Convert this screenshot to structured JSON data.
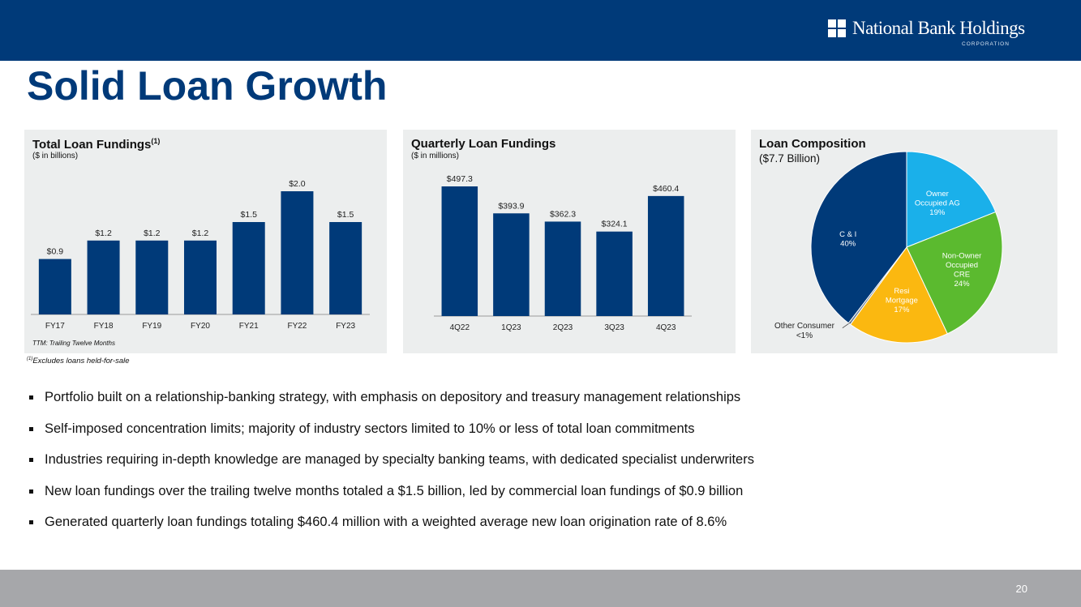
{
  "header": {
    "logo_name": "National Bank Holdings",
    "logo_sub": "CORPORATION",
    "logo_icon": "four-squares-icon"
  },
  "page": {
    "title": "Solid Loan Growth",
    "number": "20"
  },
  "colors": {
    "navy": "#003a79",
    "light_blue": "#1ab0ea",
    "green": "#5bba2f",
    "gold": "#fbb810",
    "panel_bg": "#eceeee"
  },
  "chart_data": [
    {
      "type": "bar",
      "title": "Total Loan Fundings",
      "title_sup": "(1)",
      "subtitle": "($ in billions)",
      "categories": [
        "FY17",
        "FY18",
        "FY19",
        "FY20",
        "FY21",
        "FY22",
        "FY23"
      ],
      "values": [
        0.9,
        1.2,
        1.2,
        1.2,
        1.5,
        2.0,
        1.5
      ],
      "labels": [
        "$0.9",
        "$1.2",
        "$1.2",
        "$1.2",
        "$1.5",
        "$2.0",
        "$1.5"
      ],
      "ylim": [
        0,
        2.0
      ],
      "note": "TTM: Trailing Twelve Months"
    },
    {
      "type": "bar",
      "title": "Quarterly Loan Fundings",
      "subtitle": "($ in millions)",
      "categories": [
        "4Q22",
        "1Q23",
        "2Q23",
        "3Q23",
        "4Q23"
      ],
      "values": [
        497.3,
        393.9,
        362.3,
        324.1,
        460.4
      ],
      "labels": [
        "$497.3",
        "$393.9",
        "$362.3",
        "$324.1",
        "$460.4"
      ],
      "ylim": [
        0,
        497.3
      ]
    },
    {
      "type": "pie",
      "title": "Loan Composition",
      "subtitle": "($7.7 Billion)",
      "slices": [
        {
          "name": "Owner Occupied AG",
          "lines": [
            "Owner",
            "Occupied AG"
          ],
          "pct_label": "19%",
          "value": 19,
          "color": "#1ab0ea"
        },
        {
          "name": "Non-Owner Occupied CRE",
          "lines": [
            "Non-Owner",
            "Occupied",
            "CRE"
          ],
          "pct_label": "24%",
          "value": 24,
          "color": "#5bba2f"
        },
        {
          "name": "Resi Mortgage",
          "lines": [
            "Resi",
            "Mortgage"
          ],
          "pct_label": "17%",
          "value": 17,
          "color": "#fbb810"
        },
        {
          "name": "Other Consumer",
          "lines": [
            "Other Consumer"
          ],
          "pct_label": "<1%",
          "value": 0.4,
          "color": "#6b7f99"
        },
        {
          "name": "C & I",
          "lines": [
            "C & I"
          ],
          "pct_label": "40%",
          "value": 39.6,
          "color": "#003a79"
        }
      ]
    }
  ],
  "footnote": {
    "sup": "(1)",
    "text": "Excludes loans held-for-sale"
  },
  "bullets": [
    "Portfolio built on a relationship-banking strategy, with emphasis on depository and treasury management relationships",
    "Self-imposed concentration limits; majority of industry sectors limited to 10% or less of total loan commitments",
    "Industries requiring in-depth knowledge are managed by specialty banking teams, with dedicated specialist underwriters",
    "New loan fundings over the trailing twelve months totaled a $1.5 billion, led by commercial loan fundings of $0.9 billion",
    "Generated quarterly loan fundings totaling $460.4 million with a weighted average new loan origination rate of 8.6%"
  ]
}
